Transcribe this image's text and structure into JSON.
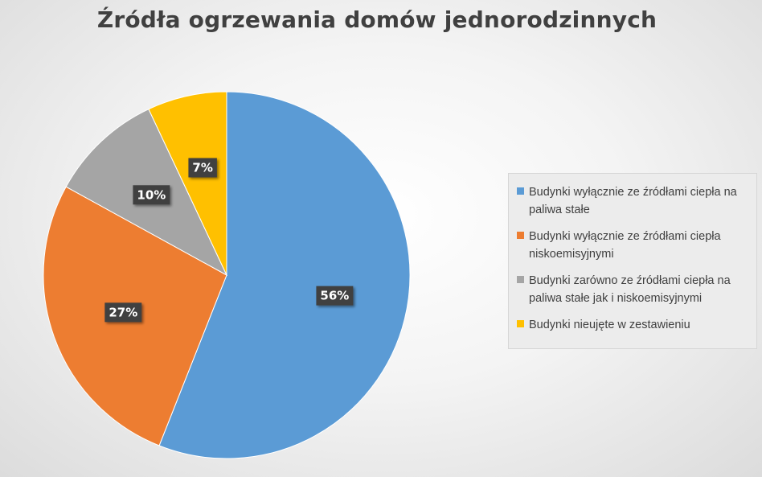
{
  "chart_data": {
    "type": "pie",
    "title": "Źródła ogrzewania domów jednorodzinnych",
    "slices": [
      {
        "name": "Budynki wyłącznie ze źródłami ciepła na paliwa stałe",
        "value": 56,
        "label": "56%",
        "color": "#5b9bd5"
      },
      {
        "name": "Budynki wyłącznie ze źródłami ciepła niskoemisyjnymi",
        "value": 27,
        "label": "27%",
        "color": "#ed7d31"
      },
      {
        "name": "Budynki zarówno ze źródłami ciepła na paliwa stałe jak i niskoemisyjnymi",
        "value": 10,
        "label": "10%",
        "color": "#a5a5a5"
      },
      {
        "name": "Budynki nieujęte w zestawieniu",
        "value": 7,
        "label": "7%",
        "color": "#ffc000"
      }
    ],
    "legend_position": "right"
  }
}
